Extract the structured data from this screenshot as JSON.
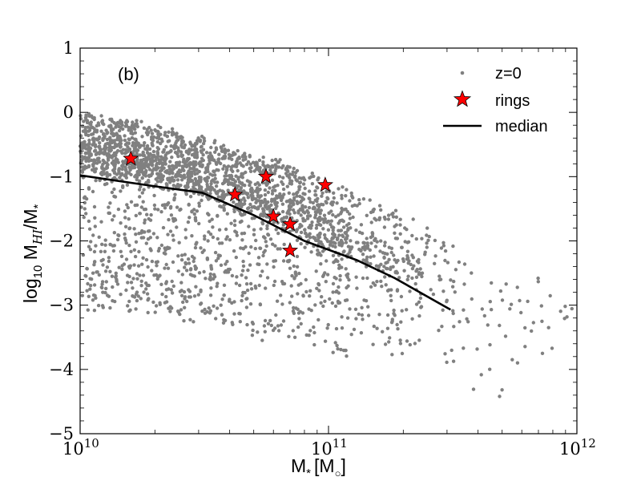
{
  "chart_data": {
    "type": "scatter",
    "panel_label": "(b)",
    "xlabel": "M",
    "xlabel_sub": "*",
    "xlabel_unit": "[M",
    "xlabel_unit_sub": "○",
    "xlabel_unit_close": "]",
    "ylabel_prefix": "log",
    "ylabel_prefix_sub": "10",
    "ylabel_main": " M",
    "ylabel_main_sub": "HI",
    "ylabel_suffix": "/M",
    "ylabel_suffix_sub": "*",
    "x_scale": "log",
    "xlim": [
      10000000000,
      1000000000000
    ],
    "ylim": [
      -5,
      1
    ],
    "x_tick_mantissa": "10",
    "x_ticks": [
      {
        "value": 10000000000,
        "exponent": "10"
      },
      {
        "value": 100000000000,
        "exponent": "11"
      },
      {
        "value": 1000000000000,
        "exponent": "12"
      }
    ],
    "y_ticks": [
      {
        "value": 1,
        "label": "1"
      },
      {
        "value": 0,
        "label": "0"
      },
      {
        "value": -1,
        "label": "−1"
      },
      {
        "value": -2,
        "label": "−2"
      },
      {
        "value": -3,
        "label": "−3"
      },
      {
        "value": -4,
        "label": "−4"
      },
      {
        "value": -5,
        "label": "−5"
      }
    ],
    "legend_position": "top-right",
    "series": [
      {
        "name": "z=0",
        "kind": "points",
        "color": "#808080",
        "bands": [
          {
            "x_range": [
              10000000000,
              16000000000
            ],
            "count": 520,
            "center_start": -0.45,
            "center_end": -0.6,
            "spread": 0.7,
            "lower_tail": 2.6
          },
          {
            "x_range": [
              16000000000,
              30000000000
            ],
            "count": 720,
            "center_start": -0.6,
            "center_end": -0.85,
            "spread": 0.75,
            "lower_tail": 2.4
          },
          {
            "x_range": [
              30000000000,
              60000000000
            ],
            "count": 640,
            "center_start": -0.85,
            "center_end": -1.25,
            "spread": 0.8,
            "lower_tail": 2.3
          },
          {
            "x_range": [
              60000000000,
              120000000000
            ],
            "count": 520,
            "center_start": -1.25,
            "center_end": -1.75,
            "spread": 0.85,
            "lower_tail": 2.1
          },
          {
            "x_range": [
              120000000000,
              250000000000
            ],
            "count": 260,
            "center_start": -1.75,
            "center_end": -2.3,
            "spread": 0.85,
            "lower_tail": 1.7
          },
          {
            "x_range": [
              250000000000,
              500000000000
            ],
            "count": 60,
            "center_start": -2.4,
            "center_end": -3.0,
            "spread": 0.9,
            "lower_tail": 1.5
          },
          {
            "x_range": [
              500000000000,
              1000000000000
            ],
            "count": 28,
            "center_start": -2.9,
            "center_end": -3.3,
            "spread": 0.8,
            "lower_tail": 0.9
          }
        ]
      },
      {
        "name": "rings",
        "kind": "stars",
        "color": "#ff0000",
        "x": [
          16000000000,
          42000000000,
          56000000000,
          60000000000,
          70000000000,
          70000000000,
          97000000000
        ],
        "y": [
          -0.72,
          -1.28,
          -1.0,
          -1.62,
          -1.74,
          -2.15,
          -1.13
        ]
      },
      {
        "name": "median",
        "kind": "line",
        "color": "#000000",
        "x": [
          10000000000,
          20000000000,
          31000000000,
          50000000000,
          80000000000,
          130000000000,
          185000000000,
          310000000000
        ],
        "y": [
          -0.98,
          -1.15,
          -1.25,
          -1.6,
          -2.0,
          -2.3,
          -2.58,
          -3.07
        ]
      }
    ]
  }
}
